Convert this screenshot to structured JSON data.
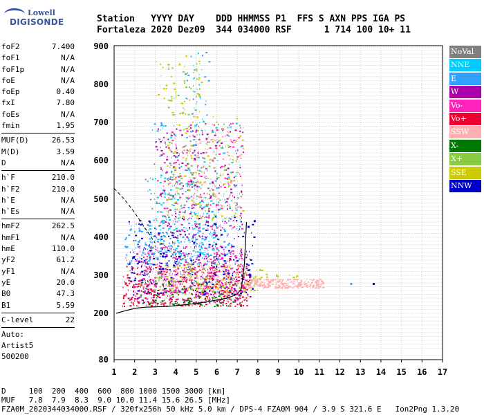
{
  "logo": {
    "line1": "Lowell",
    "line2": "DIGISONDE"
  },
  "header": {
    "line1": "Station   YYYY DAY    DDD HHMMSS P1  FFS S AXN PPS IGA PS",
    "line2": "Fortaleza 2020 Dez09  344 034000 RSF      1 714 100 10+ 11"
  },
  "params": {
    "group1": [
      {
        "k": "foF2",
        "v": "7.400"
      },
      {
        "k": "foF1",
        "v": "N/A"
      },
      {
        "k": "foF1p",
        "v": "N/A"
      },
      {
        "k": "foE",
        "v": "N/A"
      },
      {
        "k": "foEp",
        "v": "0.40"
      },
      {
        "k": "fxI",
        "v": "7.80"
      },
      {
        "k": "foEs",
        "v": "N/A"
      },
      {
        "k": "fmin",
        "v": "1.95"
      }
    ],
    "group2": [
      {
        "k": "MUF(D)",
        "v": "26.53"
      },
      {
        "k": "M(D)",
        "v": "3.59"
      },
      {
        "k": "D",
        "v": "N/A"
      }
    ],
    "group3": [
      {
        "k": "h`F",
        "v": "210.0"
      },
      {
        "k": "h`F2",
        "v": "210.0"
      },
      {
        "k": "h`E",
        "v": "N/A"
      },
      {
        "k": "h`Es",
        "v": "N/A"
      }
    ],
    "group4": [
      {
        "k": "hmF2",
        "v": "262.5"
      },
      {
        "k": "hmF1",
        "v": "N/A"
      },
      {
        "k": "hmE",
        "v": "110.0"
      },
      {
        "k": "yF2",
        "v": "61.2"
      },
      {
        "k": "yF1",
        "v": "N/A"
      },
      {
        "k": "yE",
        "v": "20.0"
      },
      {
        "k": "B0",
        "v": "47.3"
      },
      {
        "k": "B1",
        "v": "5.59"
      }
    ],
    "group5": [
      {
        "k": "C-level",
        "v": "22"
      }
    ],
    "auto": [
      "Auto:",
      "Artist5",
      "500200"
    ]
  },
  "footer": {
    "line1": "D     100  200  400  600  800 1000 1500 3000 [km]",
    "line2": "MUF   7.8  7.9  8.3  9.0 10.0 11.4 15.6 26.5 [MHz]",
    "line3": "FZA0M_2020344034000.RSF / 320fx256h 50 kHz 5.0 km / DPS-4 FZA0M 904 / 3.9 S 321.6 E   Ion2Png 1.3.20"
  },
  "legend": [
    {
      "label": "NoVal",
      "color": "#808080"
    },
    {
      "label": "NNE",
      "color": "#00ccff"
    },
    {
      "label": "E",
      "color": "#33a0ff"
    },
    {
      "label": "W",
      "color": "#aa00aa"
    },
    {
      "label": "Vo-",
      "color": "#ff22bb"
    },
    {
      "label": "Vo+",
      "color": "#ee0033"
    },
    {
      "label": "SSW",
      "color": "#ffb0b0"
    },
    {
      "label": "X-",
      "color": "#007700"
    },
    {
      "label": "X+",
      "color": "#88cc44"
    },
    {
      "label": "SSE",
      "color": "#cccc00"
    },
    {
      "label": "NNW",
      "color": "#0000cc"
    }
  ],
  "chart_data": {
    "type": "scatter",
    "title": "",
    "xlabel": "",
    "ylabel": "",
    "xlim": [
      1,
      17
    ],
    "ylim": [
      80,
      900
    ],
    "x_ticks": [
      "1",
      "2",
      "3",
      "4",
      "5",
      "6",
      "7",
      "8",
      "9",
      "10",
      "11",
      "12",
      "13",
      "14",
      "15",
      "16",
      "17"
    ],
    "y_ticks": [
      "80",
      "200",
      "300",
      "400",
      "500",
      "600",
      "700",
      "800",
      "900"
    ],
    "y_tick_values": [
      80,
      200,
      300,
      400,
      500,
      600,
      700,
      800,
      900
    ],
    "grid": true,
    "profile_curve": {
      "name": "",
      "x": [
        1.1,
        1.5,
        2.0,
        2.5,
        3.0,
        3.5,
        4.0,
        4.5,
        5.0,
        5.5,
        6.0,
        6.5,
        7.0,
        7.2,
        7.35,
        7.45
      ],
      "y": [
        200,
        206,
        213,
        216,
        217,
        218,
        220,
        223,
        226,
        230,
        235,
        240,
        250,
        265,
        330,
        440
      ]
    },
    "dashed_curve": {
      "x": [
        1.0,
        1.5,
        2.0,
        2.5,
        3.0
      ],
      "y": [
        528,
        500,
        465,
        425,
        385
      ]
    },
    "echo_clusters": [
      {
        "series": "Vo+",
        "x0": 1.4,
        "x1": 7.6,
        "y0": 220,
        "y1": 330,
        "n": 420
      },
      {
        "series": "W",
        "x0": 1.8,
        "x1": 7.6,
        "y0": 230,
        "y1": 360,
        "n": 260
      },
      {
        "series": "Vo-",
        "x0": 2.0,
        "x1": 7.4,
        "y0": 250,
        "y1": 380,
        "n": 260
      },
      {
        "series": "X-",
        "x0": 2.2,
        "x1": 7.2,
        "y0": 220,
        "y1": 290,
        "n": 120
      },
      {
        "series": "X+",
        "x0": 3.0,
        "x1": 8.0,
        "y0": 240,
        "y1": 330,
        "n": 90
      },
      {
        "series": "SSE",
        "x0": 3.5,
        "x1": 8.2,
        "y0": 260,
        "y1": 330,
        "n": 90
      },
      {
        "series": "E",
        "x0": 1.5,
        "x1": 6.6,
        "y0": 330,
        "y1": 440,
        "n": 220
      },
      {
        "series": "NNE",
        "x0": 2.6,
        "x1": 6.0,
        "y0": 350,
        "y1": 560,
        "n": 150
      },
      {
        "series": "NNW",
        "x0": 1.7,
        "x1": 7.8,
        "y0": 250,
        "y1": 460,
        "n": 220
      },
      {
        "series": "SSW",
        "x0": 7.3,
        "x1": 11.2,
        "y0": 268,
        "y1": 292,
        "n": 260
      },
      {
        "series": "SSW",
        "x0": 2.2,
        "x1": 7.3,
        "y0": 260,
        "y1": 340,
        "n": 120
      },
      {
        "series": "NoVal",
        "x0": 2.5,
        "x1": 6.0,
        "y0": 300,
        "y1": 620,
        "n": 120
      },
      {
        "series": "W",
        "x0": 3.0,
        "x1": 7.3,
        "y0": 400,
        "y1": 700,
        "n": 200
      },
      {
        "series": "Vo-",
        "x0": 3.2,
        "x1": 7.2,
        "y0": 420,
        "y1": 700,
        "n": 160
      },
      {
        "series": "NNE",
        "x0": 3.2,
        "x1": 7.2,
        "y0": 420,
        "y1": 700,
        "n": 120
      },
      {
        "series": "SSE",
        "x0": 3.5,
        "x1": 7.3,
        "y0": 450,
        "y1": 720,
        "n": 120
      },
      {
        "series": "X+",
        "x0": 3.6,
        "x1": 7.0,
        "y0": 450,
        "y1": 700,
        "n": 80
      },
      {
        "series": "SSW",
        "x0": 4.6,
        "x1": 7.2,
        "y0": 480,
        "y1": 700,
        "n": 80
      },
      {
        "series": "SSE",
        "x0": 3.0,
        "x1": 5.3,
        "y0": 720,
        "y1": 880,
        "n": 45
      },
      {
        "series": "X+",
        "x0": 3.6,
        "x1": 5.3,
        "y0": 720,
        "y1": 860,
        "n": 30
      },
      {
        "series": "E",
        "x0": 4.2,
        "x1": 5.6,
        "y0": 720,
        "y1": 890,
        "n": 20
      },
      {
        "series": "NNE",
        "x0": 4.8,
        "x1": 5.4,
        "y0": 640,
        "y1": 890,
        "n": 20
      },
      {
        "series": "SSE",
        "x0": 8.2,
        "x1": 10.0,
        "y0": 296,
        "y1": 305,
        "n": 12
      },
      {
        "series": "E",
        "x0": 2.8,
        "x1": 3.4,
        "y0": 650,
        "y1": 710,
        "n": 10
      }
    ],
    "isolated_points": [
      {
        "series": "E",
        "x": 12.5,
        "y": 280
      },
      {
        "series": "NNW",
        "x": 13.6,
        "y": 280
      },
      {
        "series": "NNW",
        "x": 7.8,
        "y": 445
      },
      {
        "series": "NNW",
        "x": 7.5,
        "y": 430
      },
      {
        "series": "E",
        "x": 2.2,
        "y": 420
      }
    ]
  }
}
